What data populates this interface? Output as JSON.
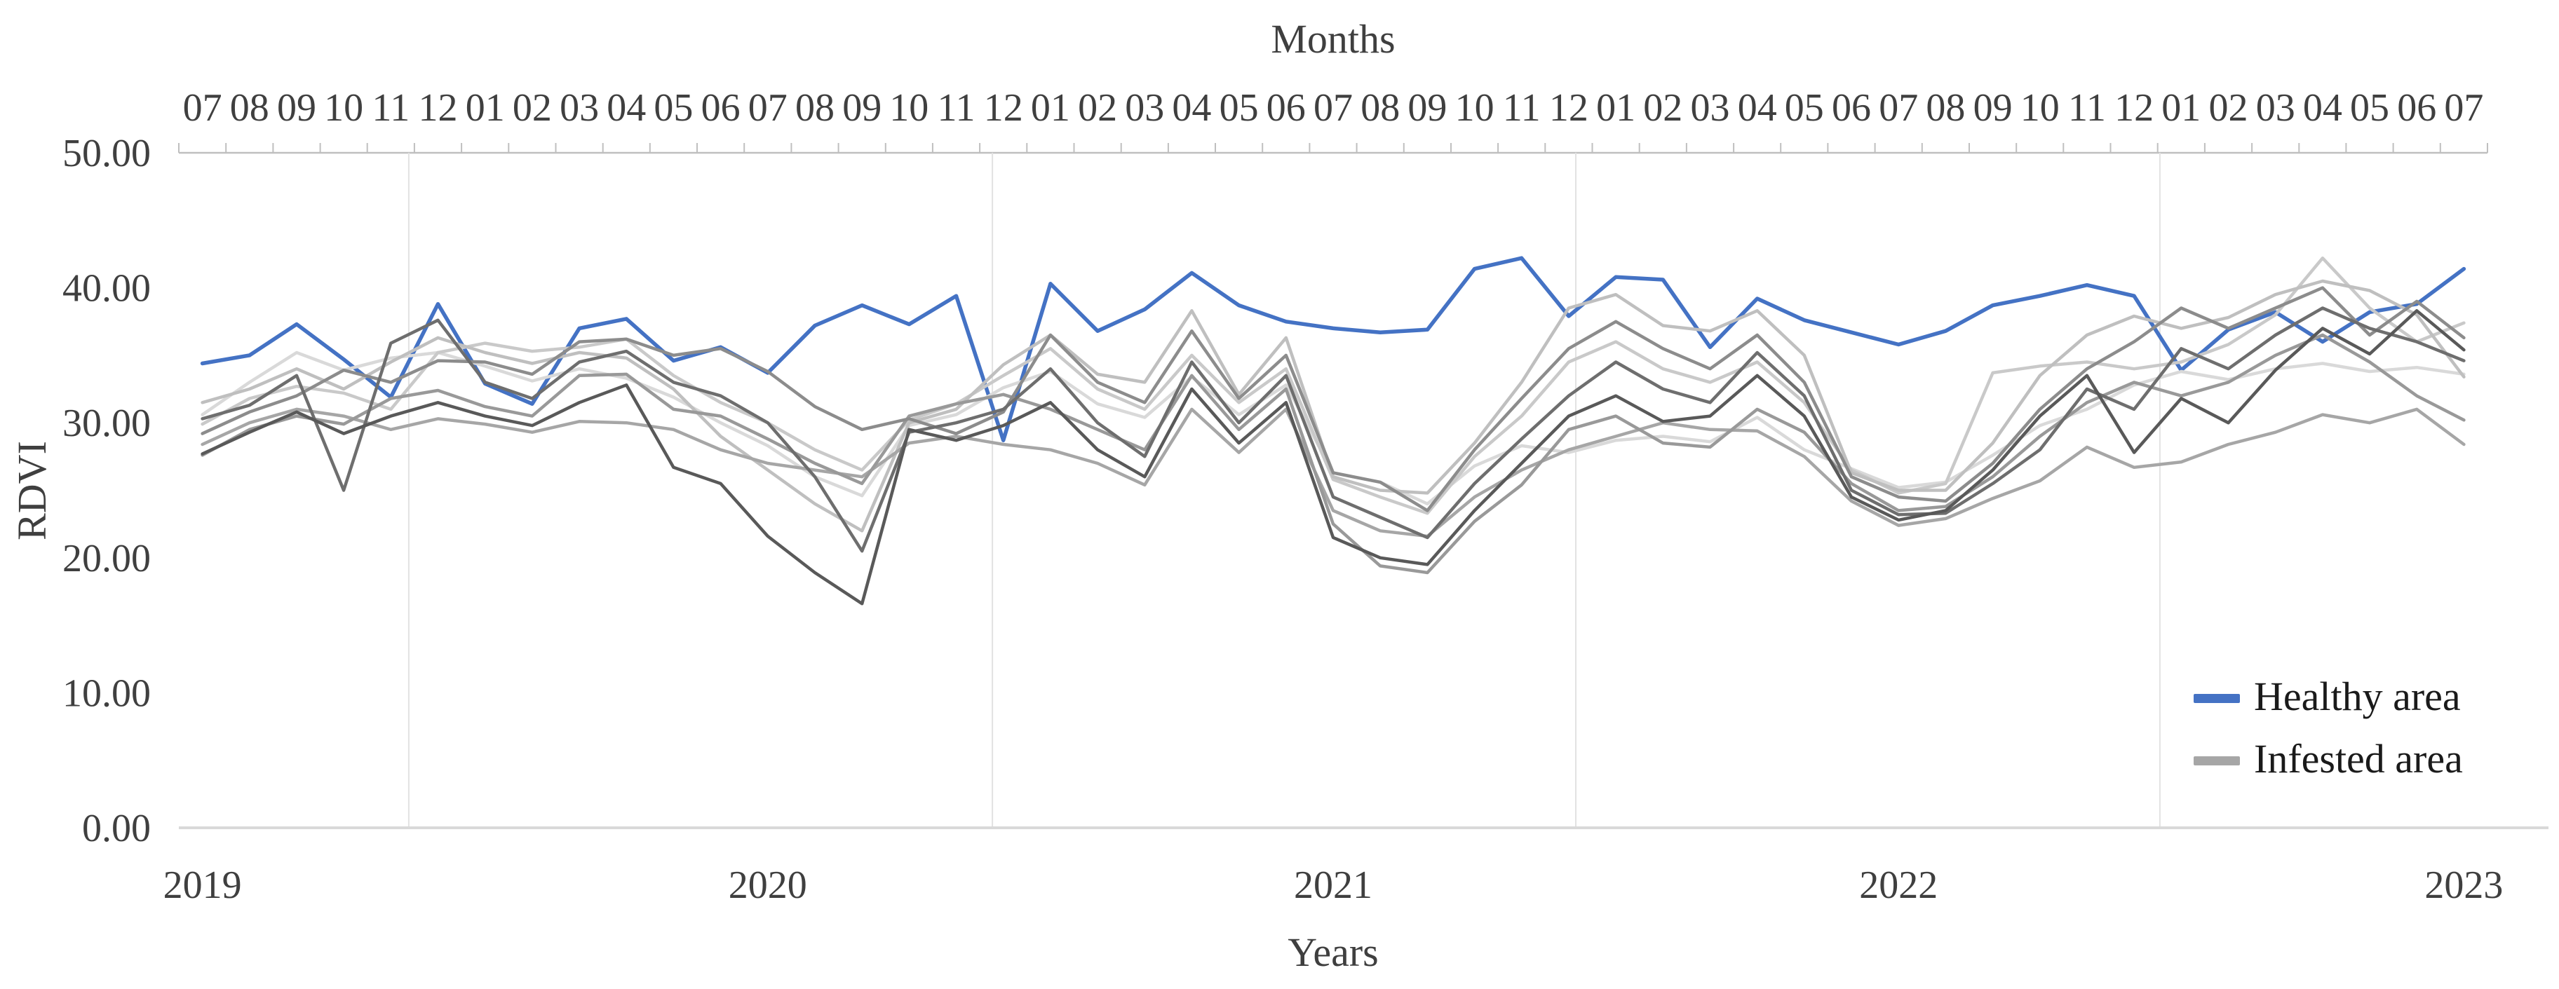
{
  "chart_data": {
    "type": "line",
    "title": "",
    "top_axis_label": "Months",
    "bottom_axis_label": "Years",
    "ylabel": "RDVI",
    "ylim": [
      0,
      50
    ],
    "y_tick_labels": [
      "0.00",
      "10.00",
      "20.00",
      "30.00",
      "40.00",
      "50.00"
    ],
    "x_month_labels": [
      "07",
      "08",
      "09",
      "10",
      "11",
      "12",
      "01",
      "02",
      "03",
      "04",
      "05",
      "06",
      "07",
      "08",
      "09",
      "10",
      "11",
      "12",
      "01",
      "02",
      "03",
      "04",
      "05",
      "06",
      "07",
      "08",
      "09",
      "10",
      "11",
      "12",
      "01",
      "02",
      "03",
      "04",
      "05",
      "06",
      "07",
      "08",
      "09",
      "10",
      "11",
      "12",
      "01",
      "02",
      "03",
      "04",
      "05",
      "06",
      "07"
    ],
    "year_labels": [
      {
        "label": "2019",
        "month_index": 0
      },
      {
        "label": "2020",
        "month_index": 12
      },
      {
        "label": "2021",
        "month_index": 24
      },
      {
        "label": "2022",
        "month_index": 36
      },
      {
        "label": "2023",
        "month_index": 48
      }
    ],
    "grid": {
      "horizontal": false,
      "vertical_year_separators": true,
      "separator_fractions": [
        0.0996,
        0.3524,
        0.6051,
        0.8581
      ]
    },
    "legend": {
      "position": "inside-bottom-right",
      "entries": [
        {
          "label": "Healthy area",
          "color": "#4472c4"
        },
        {
          "label": "Infested area",
          "color": "#a6a6a6"
        }
      ]
    },
    "series": [
      {
        "name": "Healthy area",
        "color": "#4472c4",
        "stroke_width": 5.5,
        "values": [
          34.4,
          35.0,
          37.3,
          34.7,
          31.9,
          38.8,
          32.9,
          31.4,
          37.0,
          37.7,
          34.6,
          35.6,
          33.7,
          37.2,
          38.7,
          37.3,
          39.4,
          28.7,
          40.3,
          36.8,
          38.4,
          41.1,
          38.7,
          37.5,
          37.0,
          36.7,
          36.9,
          41.4,
          42.2,
          37.9,
          40.8,
          40.6,
          35.6,
          39.2,
          37.6,
          36.7,
          35.8,
          36.8,
          38.7,
          39.4,
          40.2,
          39.4,
          33.9,
          36.9,
          38.2,
          36.0,
          38.2,
          38.8,
          41.4
        ]
      },
      {
        "name": "Infested area 1",
        "color": "#d9d9d9",
        "stroke_width": 4.5,
        "values": [
          30.6,
          33.0,
          35.2,
          33.9,
          34.8,
          35.2,
          34.2,
          33.1,
          34.0,
          33.3,
          31.9,
          30.0,
          28.3,
          26.0,
          24.6,
          29.8,
          30.6,
          32.6,
          33.8,
          31.4,
          30.4,
          33.4,
          30.6,
          32.8,
          26.3,
          25.6,
          24.0,
          26.8,
          28.3,
          27.8,
          28.7,
          29.0,
          28.6,
          30.4,
          28.0,
          26.6,
          25.2,
          25.6,
          27.6,
          29.8,
          31.0,
          32.8,
          33.8,
          33.2,
          34.0,
          34.4,
          33.8,
          34.1,
          33.6
        ]
      },
      {
        "name": "Infested area 2",
        "color": "#c9c9c9",
        "stroke_width": 4.5,
        "values": [
          29.9,
          31.8,
          32.7,
          32.2,
          31.0,
          35.2,
          35.9,
          35.3,
          35.6,
          36.2,
          33.5,
          31.5,
          30.0,
          28.0,
          26.5,
          30.2,
          31.4,
          33.5,
          35.5,
          32.5,
          31.0,
          35.0,
          31.5,
          34.0,
          25.8,
          24.5,
          23.3,
          27.5,
          30.5,
          34.5,
          36.0,
          34.0,
          33.0,
          34.5,
          31.5,
          26.5,
          24.8,
          25.5,
          33.7,
          34.2,
          34.5,
          34.0,
          34.5,
          35.8,
          38.0,
          42.2,
          38.5,
          36.0,
          37.4
        ]
      },
      {
        "name": "Infested area 3",
        "color": "#bfbfbf",
        "stroke_width": 4.5,
        "values": [
          31.5,
          32.5,
          34.0,
          32.5,
          34.5,
          36.3,
          35.2,
          34.4,
          35.2,
          34.8,
          32.5,
          29.0,
          26.5,
          24.0,
          22.0,
          30.0,
          31.0,
          34.3,
          36.5,
          33.6,
          33.0,
          38.3,
          32.1,
          36.3,
          26.0,
          25.0,
          24.8,
          28.5,
          33.0,
          38.5,
          39.5,
          37.2,
          36.8,
          38.3,
          35.0,
          26.3,
          25.0,
          25.0,
          28.5,
          33.5,
          36.5,
          37.9,
          37.0,
          37.8,
          39.5,
          40.5,
          39.8,
          38.0,
          33.4
        ]
      },
      {
        "name": "Infested area 4",
        "color": "#a6a6a6",
        "stroke_width": 4.5,
        "values": [
          28.4,
          30.0,
          31.0,
          30.5,
          29.5,
          30.3,
          29.9,
          29.3,
          30.1,
          30.0,
          29.5,
          28.0,
          27.0,
          26.5,
          26.0,
          28.5,
          29.0,
          28.4,
          28.0,
          27.0,
          25.4,
          31.0,
          27.8,
          31.0,
          23.5,
          22.0,
          21.6,
          24.5,
          26.5,
          28.0,
          29.0,
          30.0,
          29.5,
          29.4,
          27.5,
          24.2,
          22.4,
          22.9,
          24.4,
          25.7,
          28.2,
          26.7,
          27.1,
          28.4,
          29.3,
          30.6,
          30.0,
          31.0,
          28.4
        ]
      },
      {
        "name": "Infested area 5",
        "color": "#999999",
        "stroke_width": 4.5,
        "values": [
          27.6,
          29.5,
          30.5,
          29.9,
          31.8,
          32.4,
          31.2,
          30.5,
          33.5,
          33.6,
          31.0,
          30.5,
          28.8,
          27.0,
          25.5,
          30.5,
          31.4,
          32.1,
          31.0,
          29.5,
          28.0,
          33.5,
          29.5,
          32.5,
          22.5,
          19.4,
          18.9,
          22.7,
          25.4,
          29.5,
          30.5,
          28.5,
          28.2,
          31.0,
          29.3,
          25.5,
          23.5,
          23.8,
          26.0,
          29.0,
          31.5,
          33.0,
          32.0,
          33.0,
          35.0,
          36.5,
          34.5,
          32.0,
          30.2
        ]
      },
      {
        "name": "Infested area 6",
        "color": "#8c8c8c",
        "stroke_width": 4.5,
        "values": [
          29.2,
          30.8,
          32.0,
          33.9,
          33.0,
          34.6,
          34.5,
          33.6,
          36.0,
          36.2,
          35.0,
          35.5,
          33.8,
          31.2,
          29.5,
          30.3,
          29.2,
          30.8,
          36.5,
          33.0,
          31.5,
          36.8,
          31.8,
          35.0,
          26.3,
          25.6,
          23.5,
          28.0,
          31.8,
          35.5,
          37.5,
          35.5,
          34.0,
          36.5,
          33.0,
          26.0,
          24.5,
          24.2,
          27.0,
          31.0,
          34.0,
          36.0,
          38.5,
          37.0,
          38.5,
          40.0,
          36.5,
          39.0,
          36.3
        ]
      },
      {
        "name": "Infested area 7",
        "color": "#6e6e6e",
        "stroke_width": 4.5,
        "values": [
          30.3,
          31.3,
          33.5,
          25.0,
          35.9,
          37.6,
          33.0,
          31.8,
          34.5,
          35.3,
          33.0,
          32.0,
          30.0,
          26.0,
          20.5,
          29.3,
          30.0,
          31.0,
          34.0,
          30.0,
          27.5,
          34.5,
          30.0,
          33.5,
          24.5,
          23.0,
          21.5,
          25.5,
          28.8,
          32.0,
          34.5,
          32.5,
          31.5,
          35.2,
          32.0,
          25.0,
          23.2,
          23.3,
          25.5,
          28.0,
          32.5,
          31.0,
          35.5,
          34.0,
          36.5,
          38.5,
          37.0,
          36.0,
          34.6
        ]
      },
      {
        "name": "Infested area 8",
        "color": "#595959",
        "stroke_width": 4.5,
        "values": [
          27.7,
          29.3,
          30.8,
          29.2,
          30.5,
          31.5,
          30.5,
          29.8,
          31.5,
          32.8,
          26.7,
          25.5,
          21.6,
          18.9,
          16.6,
          29.5,
          28.7,
          29.8,
          31.5,
          28.0,
          26.0,
          32.5,
          28.5,
          31.5,
          21.5,
          20.0,
          19.5,
          23.5,
          27.0,
          30.5,
          32.0,
          30.1,
          30.5,
          33.5,
          30.5,
          24.5,
          22.8,
          23.5,
          26.5,
          30.5,
          33.5,
          27.8,
          31.8,
          30.0,
          33.9,
          37.0,
          35.1,
          38.3,
          35.4
        ]
      }
    ]
  },
  "styles": {
    "background": "#ffffff",
    "axis_line_color": "#bfbfbf",
    "gridline_color": "#e2e2e2",
    "baseline_color": "#d9d9d9",
    "text_color": "#3f3f3f",
    "legend_text_color": "#1a1a1a"
  }
}
